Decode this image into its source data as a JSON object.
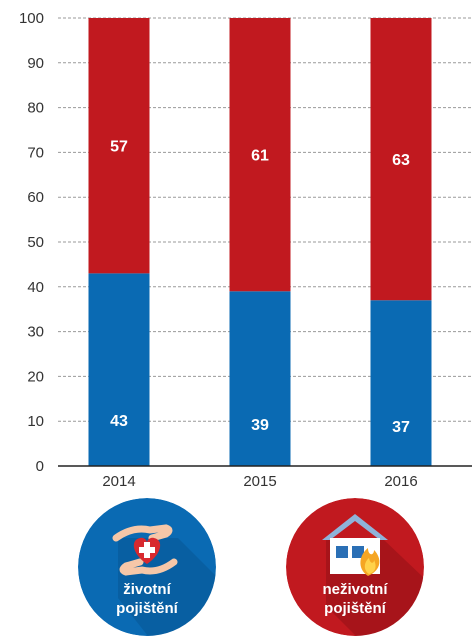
{
  "chart_data": {
    "type": "bar",
    "stacked": true,
    "categories": [
      "2014",
      "2015",
      "2016"
    ],
    "series": [
      {
        "color": "#0a6ab3",
        "values": [
          43,
          39,
          37
        ]
      },
      {
        "color": "#c1191f",
        "values": [
          57,
          61,
          63
        ]
      }
    ],
    "ylim": [
      0,
      100
    ],
    "yticks": [
      0,
      10,
      20,
      30,
      40,
      50,
      60,
      70,
      80,
      90,
      100
    ],
    "grid": true
  },
  "badges": [
    {
      "line1": "životní",
      "line2": "pojištění",
      "color": "#0a6ab3",
      "icon": "hands-heart-icon"
    },
    {
      "line1": "neživotní",
      "line2": "pojištění",
      "color": "#c1191f",
      "icon": "house-fire-icon"
    }
  ]
}
